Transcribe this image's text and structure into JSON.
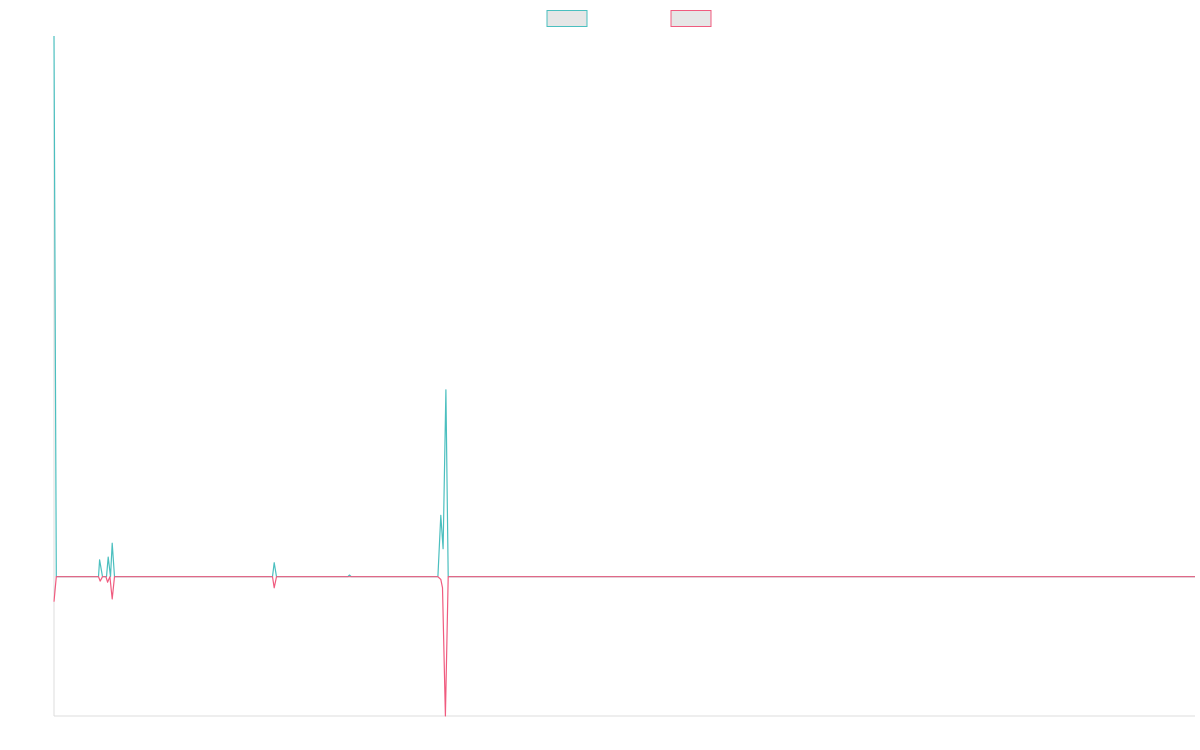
{
  "chart_data": {
    "type": "line",
    "title": "",
    "xlabel": "",
    "ylabel": "",
    "legend_position": "top-center",
    "grid": false,
    "x_range": [
      0,
      200
    ],
    "ylim": [
      -25,
      97
    ],
    "series": [
      {
        "name": "",
        "color": "#4bbfbf",
        "fill": "#e6e6e6",
        "points": [
          [
            0,
            97
          ],
          [
            0.4,
            0
          ],
          [
            7.8,
            0
          ],
          [
            8,
            3
          ],
          [
            8.5,
            0
          ],
          [
            9.2,
            0
          ],
          [
            9.5,
            3.5
          ],
          [
            9.9,
            0
          ],
          [
            10.2,
            6
          ],
          [
            10.6,
            0
          ],
          [
            38.3,
            0
          ],
          [
            38.6,
            2.5
          ],
          [
            39,
            0
          ],
          [
            51.5,
            0
          ],
          [
            51.8,
            0.3
          ],
          [
            52.1,
            0
          ],
          [
            67.3,
            0
          ],
          [
            67.8,
            11
          ],
          [
            68.2,
            5
          ],
          [
            68.7,
            33.5
          ],
          [
            69.1,
            0
          ],
          [
            200,
            0
          ]
        ]
      },
      {
        "name": "",
        "color": "#f05b7f",
        "fill": "#e6e6e6",
        "points": [
          [
            0,
            -4.5
          ],
          [
            0.4,
            0
          ],
          [
            7.8,
            0
          ],
          [
            8.1,
            -0.8
          ],
          [
            8.5,
            0
          ],
          [
            9.1,
            0
          ],
          [
            9.4,
            -1
          ],
          [
            9.8,
            0
          ],
          [
            10.2,
            -4
          ],
          [
            10.6,
            0
          ],
          [
            38.3,
            0
          ],
          [
            38.6,
            -2
          ],
          [
            39,
            0
          ],
          [
            67.3,
            0
          ],
          [
            67.8,
            -0.5
          ],
          [
            68.1,
            -2
          ],
          [
            68.6,
            -25
          ],
          [
            69.1,
            0
          ],
          [
            200,
            0
          ]
        ]
      }
    ]
  }
}
